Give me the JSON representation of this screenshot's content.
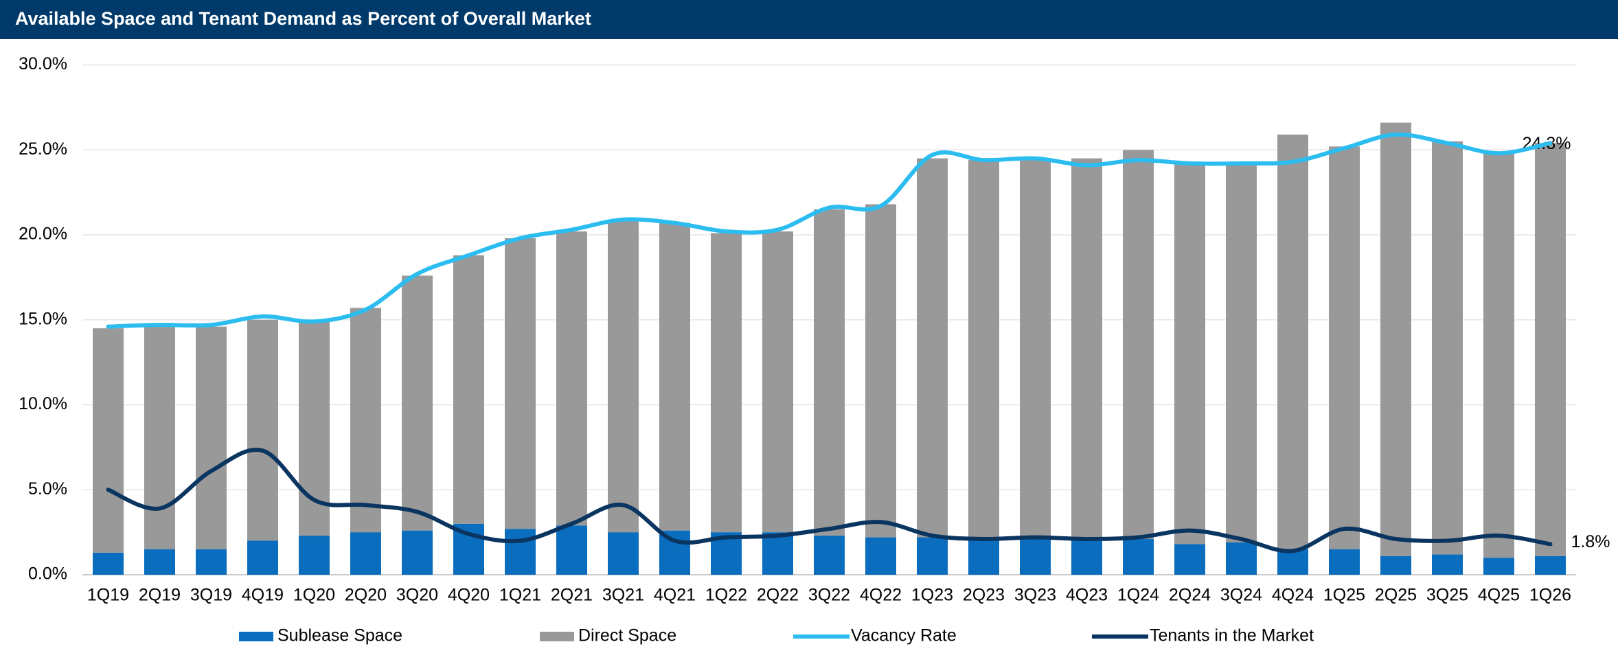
{
  "chart_data": {
    "type": "bar",
    "stacked": true,
    "title": "Available Space and Tenant Demand as Percent of Overall Market",
    "categories": [
      "1Q19",
      "2Q19",
      "3Q19",
      "4Q19",
      "1Q20",
      "2Q20",
      "3Q20",
      "4Q20",
      "1Q21",
      "2Q21",
      "3Q21",
      "4Q21",
      "1Q22",
      "2Q22",
      "3Q22",
      "4Q22",
      "1Q23",
      "2Q23",
      "3Q23",
      "4Q23",
      "1Q24",
      "2Q24",
      "3Q24",
      "4Q24",
      "1Q25",
      "2Q25",
      "3Q25",
      "4Q25",
      "1Q26"
    ],
    "series": [
      {
        "name": "Sublease Space",
        "type": "bar",
        "color": "#0b6dbd",
        "values": [
          1.3,
          1.5,
          1.5,
          2.0,
          2.3,
          2.5,
          2.6,
          3.0,
          2.7,
          2.9,
          2.5,
          2.6,
          2.5,
          2.5,
          2.3,
          2.2,
          2.2,
          2.1,
          2.1,
          2.1,
          2.1,
          1.8,
          1.9,
          1.5,
          1.5,
          1.1,
          1.2,
          1.0,
          1.1
        ]
      },
      {
        "name": "Direct Space",
        "type": "bar",
        "color": "#999999",
        "values": [
          13.2,
          13.1,
          13.1,
          13.0,
          12.7,
          13.2,
          15.0,
          15.8,
          17.1,
          17.3,
          18.3,
          18.1,
          17.6,
          17.7,
          19.2,
          19.6,
          22.3,
          22.3,
          22.4,
          22.4,
          22.9,
          22.4,
          22.3,
          24.4,
          23.7,
          25.5,
          24.3,
          23.8,
          24.3
        ],
        "value_labels": [
          null,
          null,
          null,
          null,
          null,
          null,
          null,
          null,
          null,
          null,
          null,
          null,
          null,
          null,
          null,
          null,
          null,
          null,
          null,
          null,
          null,
          null,
          null,
          null,
          null,
          null,
          null,
          null,
          "24.3%"
        ]
      },
      {
        "name": "Vacancy Rate",
        "type": "line",
        "color": "#2bbcf0",
        "values": [
          14.6,
          14.7,
          14.7,
          15.2,
          14.9,
          15.6,
          17.7,
          18.8,
          19.8,
          20.3,
          20.9,
          20.7,
          20.2,
          20.3,
          21.6,
          21.7,
          24.7,
          24.4,
          24.5,
          24.1,
          24.4,
          24.2,
          24.2,
          24.3,
          25.1,
          25.9,
          25.4,
          24.8,
          25.4
        ]
      },
      {
        "name": "Tenants in the Market",
        "type": "line",
        "color": "#0a3560",
        "values": [
          5.0,
          3.9,
          6.1,
          7.3,
          4.4,
          4.1,
          3.7,
          2.4,
          2.0,
          3.0,
          4.1,
          2.0,
          2.2,
          2.3,
          2.7,
          3.1,
          2.3,
          2.1,
          2.2,
          2.1,
          2.2,
          2.6,
          2.1,
          1.4,
          2.7,
          2.1,
          2.0,
          2.3,
          1.8
        ],
        "value_labels": [
          null,
          null,
          null,
          null,
          null,
          null,
          null,
          null,
          null,
          null,
          null,
          null,
          null,
          null,
          null,
          null,
          null,
          null,
          null,
          null,
          null,
          null,
          null,
          null,
          null,
          null,
          null,
          null,
          "1.8%"
        ]
      }
    ],
    "ylim": [
      0,
      30
    ],
    "yticks": [
      {
        "value": 0,
        "label": "0.0%"
      },
      {
        "value": 5,
        "label": "5.0%"
      },
      {
        "value": 10,
        "label": "10.0%"
      },
      {
        "value": 15,
        "label": "15.0%"
      },
      {
        "value": 20,
        "label": "20.0%"
      },
      {
        "value": 25,
        "label": "25.0%"
      },
      {
        "value": 30,
        "label": "30.0%"
      }
    ],
    "grid": true,
    "legend": "bottom"
  }
}
